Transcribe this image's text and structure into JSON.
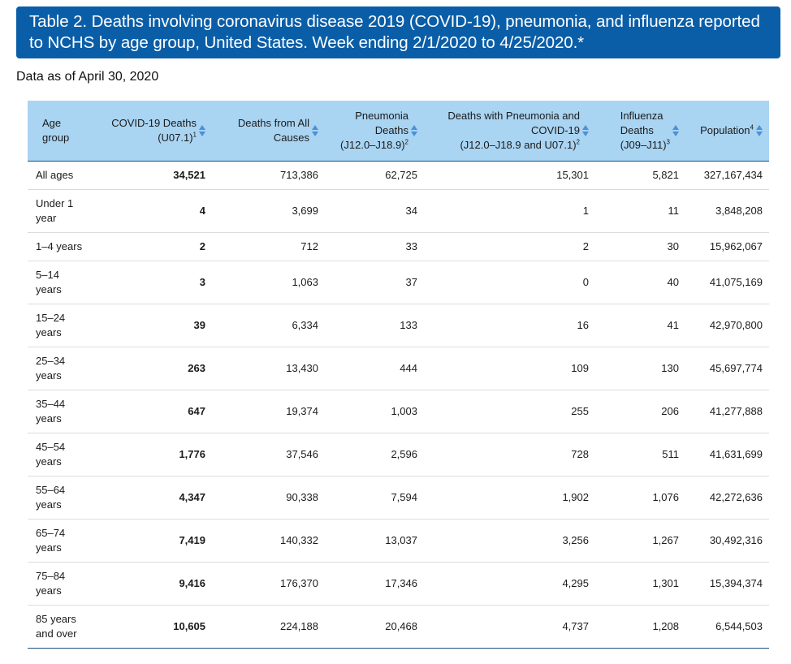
{
  "title": "Table 2. Deaths involving coronavirus disease 2019 (COVID-19), pneumonia, and influenza reported to NCHS by age group, United States. Week ending 2/1/2020 to 4/25/2020.*",
  "as_of": "Data as of April 30, 2020",
  "headers": {
    "age": {
      "line1": "Age",
      "line2": "group"
    },
    "covid": {
      "line1": "COVID-19 Deaths",
      "line2": "(U07.1)",
      "sup": "1"
    },
    "all": {
      "line1": "Deaths from All",
      "line2": "Causes"
    },
    "pneu": {
      "line1": "Pneumonia",
      "line2": "Deaths",
      "line3": "(J12.0–J18.9)",
      "sup": "2"
    },
    "pneu_covid": {
      "line1": "Deaths with Pneumonia and",
      "line2": "COVID-19",
      "line3": "(J12.0–J18.9 and U07.1)",
      "sup": "2"
    },
    "flu": {
      "line1": "Influenza",
      "line2": "Deaths",
      "line3": "(J09–J11)",
      "sup": "3"
    },
    "pop": {
      "line1": "Population",
      "sup": "4"
    }
  },
  "icons": {
    "sort": "sort-icon"
  },
  "colors": {
    "title_bg": "#0a5ea8",
    "header_bg": "#a9d4f2",
    "sort_icon": "#4a90d9"
  },
  "rows": [
    {
      "age1": "All ages",
      "age2": "",
      "covid": "34,521",
      "all": "713,386",
      "pneu": "62,725",
      "pneu_covid": "15,301",
      "flu": "5,821",
      "pop": "327,167,434"
    },
    {
      "age1": "Under 1",
      "age2": "year",
      "covid": "4",
      "all": "3,699",
      "pneu": "34",
      "pneu_covid": "1",
      "flu": "11",
      "pop": "3,848,208"
    },
    {
      "age1": "1–4 years",
      "age2": "",
      "covid": "2",
      "all": "712",
      "pneu": "33",
      "pneu_covid": "2",
      "flu": "30",
      "pop": "15,962,067"
    },
    {
      "age1": "5–14",
      "age2": "years",
      "covid": "3",
      "all": "1,063",
      "pneu": "37",
      "pneu_covid": "0",
      "flu": "40",
      "pop": "41,075,169"
    },
    {
      "age1": "15–24",
      "age2": "years",
      "covid": "39",
      "all": "6,334",
      "pneu": "133",
      "pneu_covid": "16",
      "flu": "41",
      "pop": "42,970,800"
    },
    {
      "age1": "25–34",
      "age2": "years",
      "covid": "263",
      "all": "13,430",
      "pneu": "444",
      "pneu_covid": "109",
      "flu": "130",
      "pop": "45,697,774"
    },
    {
      "age1": "35–44",
      "age2": "years",
      "covid": "647",
      "all": "19,374",
      "pneu": "1,003",
      "pneu_covid": "255",
      "flu": "206",
      "pop": "41,277,888"
    },
    {
      "age1": "45–54",
      "age2": "years",
      "covid": "1,776",
      "all": "37,546",
      "pneu": "2,596",
      "pneu_covid": "728",
      "flu": "511",
      "pop": "41,631,699"
    },
    {
      "age1": "55–64",
      "age2": "years",
      "covid": "4,347",
      "all": "90,338",
      "pneu": "7,594",
      "pneu_covid": "1,902",
      "flu": "1,076",
      "pop": "42,272,636"
    },
    {
      "age1": "65–74",
      "age2": "years",
      "covid": "7,419",
      "all": "140,332",
      "pneu": "13,037",
      "pneu_covid": "3,256",
      "flu": "1,267",
      "pop": "30,492,316"
    },
    {
      "age1": "75–84",
      "age2": "years",
      "covid": "9,416",
      "all": "176,370",
      "pneu": "17,346",
      "pneu_covid": "4,295",
      "flu": "1,301",
      "pop": "15,394,374"
    },
    {
      "age1": "85 years",
      "age2": "and over",
      "covid": "10,605",
      "all": "224,188",
      "pneu": "20,468",
      "pneu_covid": "4,737",
      "flu": "1,208",
      "pop": "6,544,503"
    }
  ]
}
